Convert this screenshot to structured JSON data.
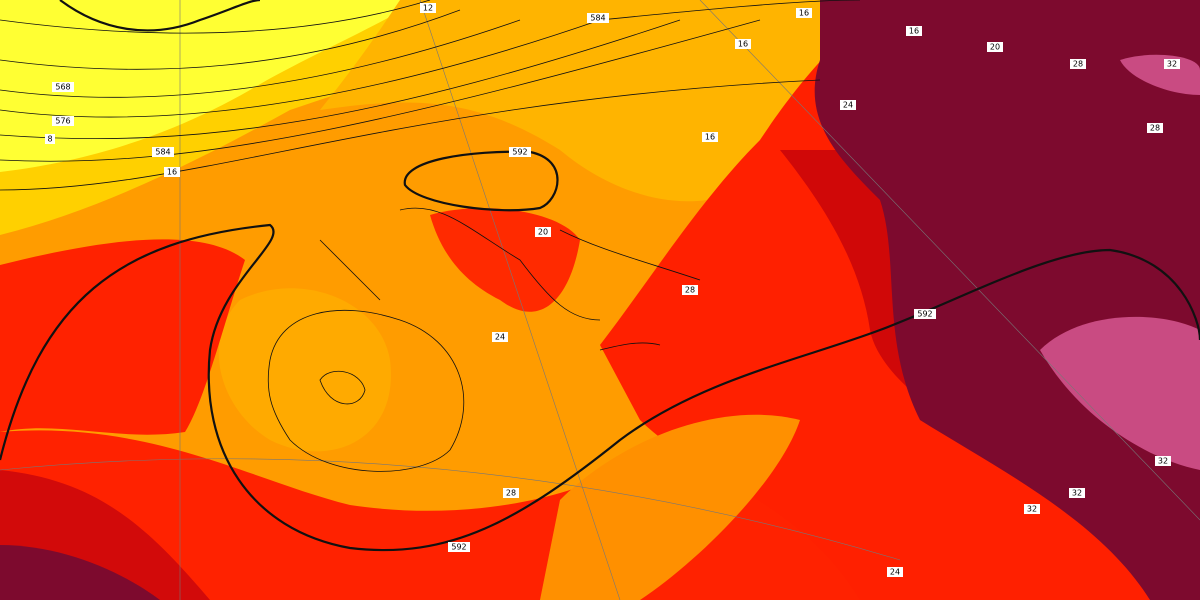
{
  "map": {
    "contour_labels": [
      "568",
      "576",
      "584",
      "584",
      "592",
      "592",
      "592",
      "16",
      "16",
      "16",
      "16",
      "16",
      "20",
      "24",
      "28",
      "32",
      "28",
      "20",
      "24",
      "28",
      "28",
      "32",
      "32",
      "32",
      "24",
      "12",
      "8"
    ]
  }
}
